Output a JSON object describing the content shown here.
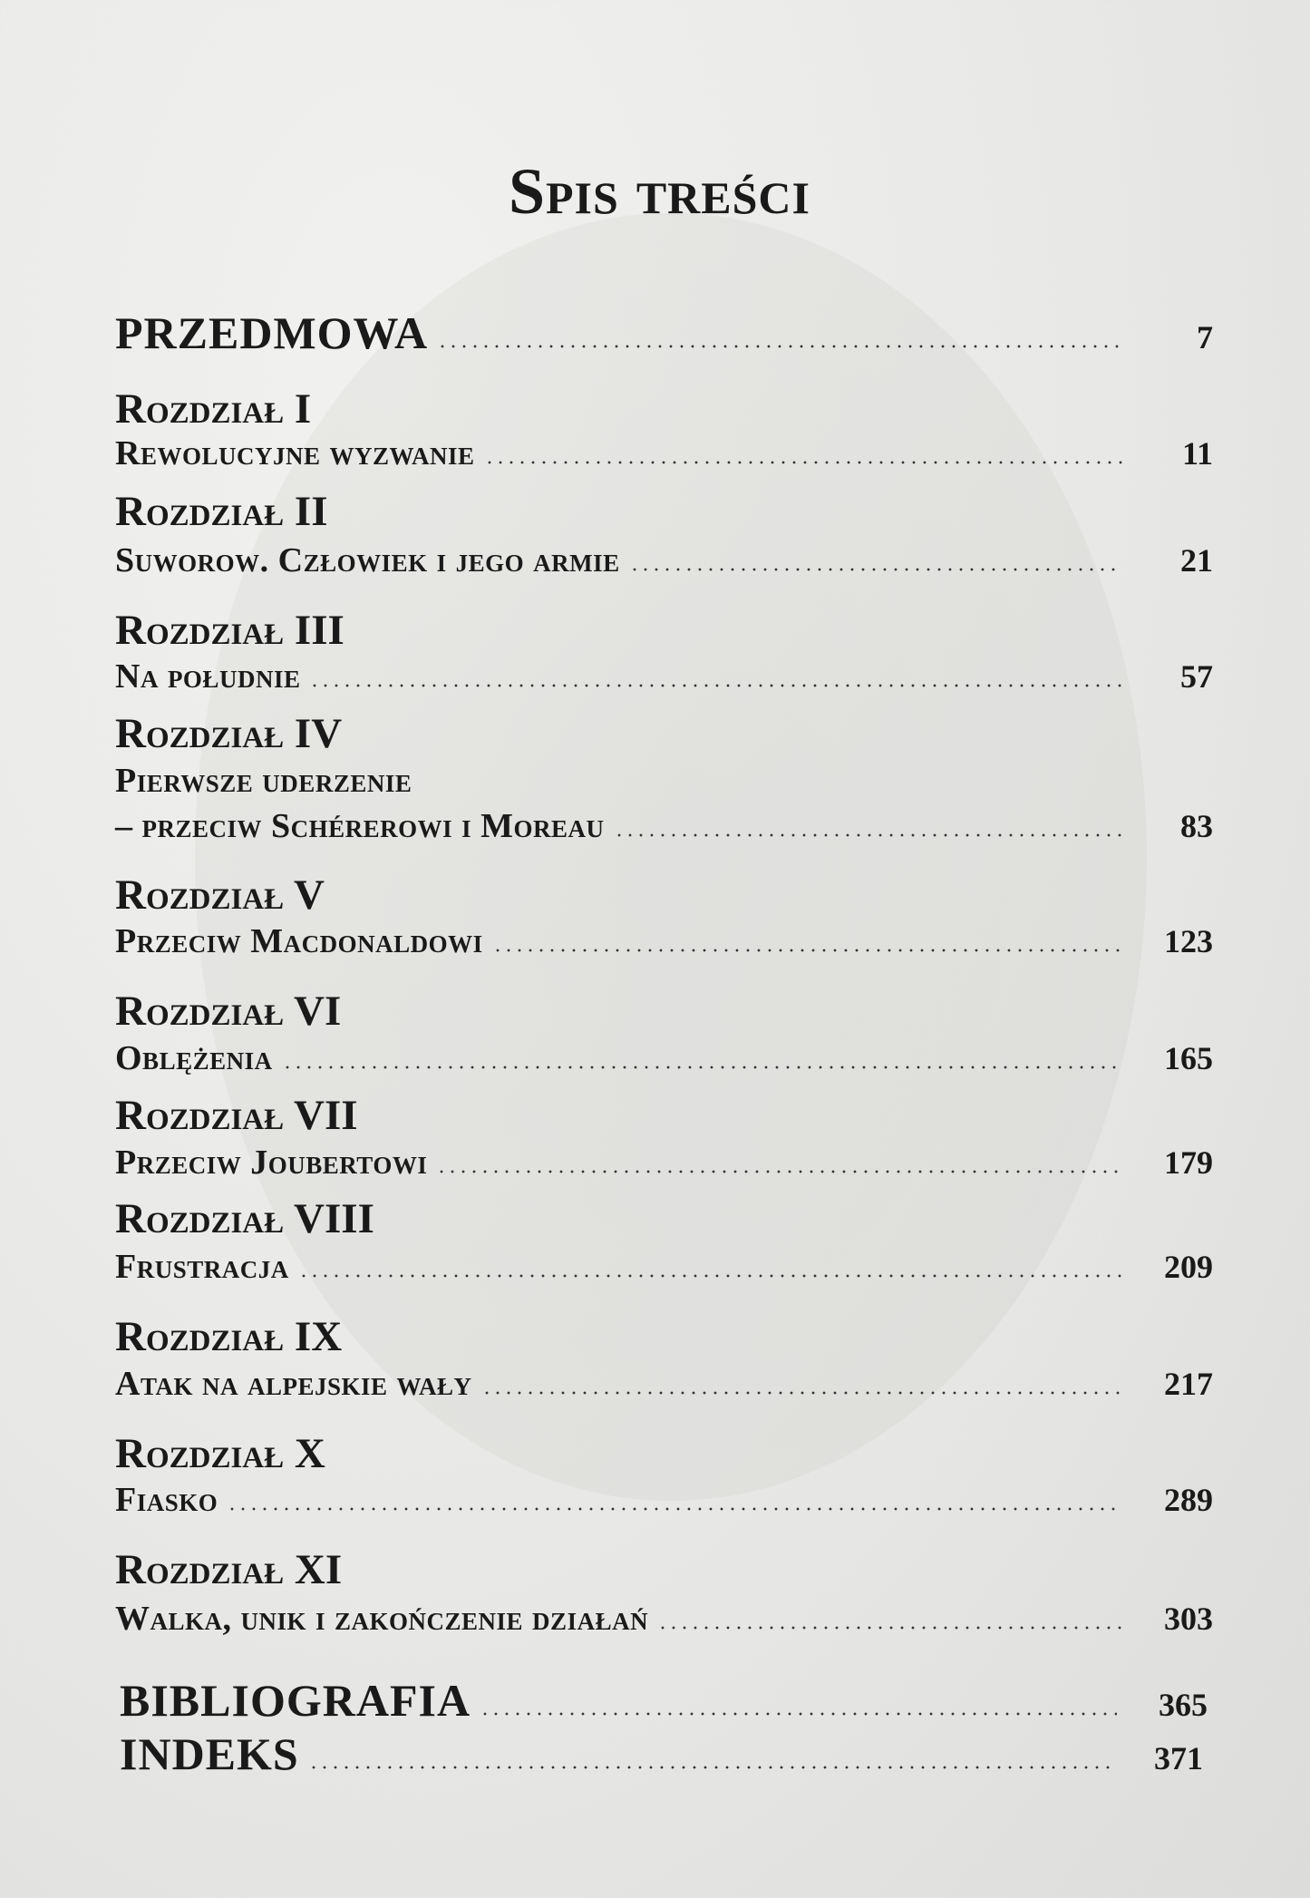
{
  "title": "Spis treści",
  "preface": {
    "label": "PRZEDMOWA",
    "page": "7"
  },
  "chapters": [
    {
      "label": "Rozdział I",
      "title": "Rewolucyjne wyzwanie",
      "page": "11"
    },
    {
      "label": "Rozdział II",
      "title": "Suworow. Człowiek i jego armie",
      "page": "21"
    },
    {
      "label": "Rozdział III",
      "title": "Na południe",
      "page": "57"
    },
    {
      "label": "Rozdział IV",
      "title": "Pierwsze uderzenie",
      "title_line2": "– przeciw Schérerowi i Moreau",
      "page": "83"
    },
    {
      "label": "Rozdział V",
      "title": "Przeciw Macdonaldowi",
      "page": "123"
    },
    {
      "label": "Rozdział VI",
      "title": "Oblężenia",
      "page": "165"
    },
    {
      "label": "Rozdział VII",
      "title": "Przeciw Joubertowi",
      "page": "179"
    },
    {
      "label": "Rozdział VIII",
      "title": "Frustracja",
      "page": "209"
    },
    {
      "label": "Rozdział IX",
      "title": "Atak na alpejskie wały",
      "page": "217"
    },
    {
      "label": "Rozdział X",
      "title": "Fiasko",
      "page": "289"
    },
    {
      "label": "Rozdział XI",
      "title": "Walka, unik i zakończenie działań",
      "page": "303"
    }
  ],
  "bibliography": {
    "label": "BIBLIOGRAFIA",
    "page": "365"
  },
  "index": {
    "label": "INDEKS",
    "page": "371"
  }
}
